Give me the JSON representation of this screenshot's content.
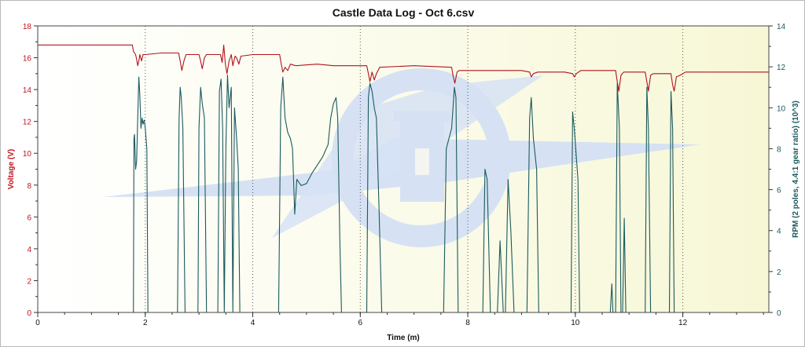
{
  "chart_data": {
    "type": "line",
    "title": "Castle Data Log - Oct 6.csv",
    "xlabel": "Time (m)",
    "ylabel_left": "Voltage (V)",
    "ylabel_right": "RPM (2 poles, 4.4:1 gear ratio) (10^3)",
    "xlim": [
      0,
      13.6
    ],
    "ylim_left": [
      0,
      18
    ],
    "ylim_right": [
      0,
      14
    ],
    "x_ticks": [
      0,
      2,
      4,
      6,
      8,
      10,
      12
    ],
    "y_left_ticks": [
      0,
      2,
      4,
      6,
      8,
      10,
      12,
      14,
      16,
      18
    ],
    "y_right_ticks": [
      0,
      2,
      4,
      6,
      8,
      10,
      12,
      14
    ],
    "grid": {
      "x": true,
      "y": false,
      "style": "dotted"
    },
    "colors": {
      "voltage": "#b0141e",
      "rpm": "#1a5a5e",
      "left_axis": "#c0141e",
      "right_axis": "#1a5a5e",
      "plot_bg_left": "#ffffff",
      "plot_bg_right": "#f7f7d6",
      "watermark": "#d6e2f4"
    },
    "series": [
      {
        "name": "Voltage",
        "axis": "left",
        "points": [
          [
            0,
            16.8
          ],
          [
            1.76,
            16.8
          ],
          [
            1.78,
            16.4
          ],
          [
            1.82,
            16.2
          ],
          [
            1.84,
            15.9
          ],
          [
            1.86,
            15.5
          ],
          [
            1.88,
            15.8
          ],
          [
            1.9,
            16.2
          ],
          [
            1.93,
            15.8
          ],
          [
            1.96,
            16.2
          ],
          [
            2.0,
            16.2
          ],
          [
            2.3,
            16.3
          ],
          [
            2.62,
            16.3
          ],
          [
            2.65,
            15.8
          ],
          [
            2.68,
            15.2
          ],
          [
            2.72,
            15.8
          ],
          [
            2.76,
            16.2
          ],
          [
            3.0,
            16.2
          ],
          [
            3.03,
            15.8
          ],
          [
            3.06,
            15.3
          ],
          [
            3.1,
            16.0
          ],
          [
            3.14,
            16.2
          ],
          [
            3.4,
            16.2
          ],
          [
            3.43,
            15.7
          ],
          [
            3.46,
            16.8
          ],
          [
            3.49,
            15.6
          ],
          [
            3.52,
            15.0
          ],
          [
            3.56,
            15.8
          ],
          [
            3.6,
            16.2
          ],
          [
            3.63,
            15.5
          ],
          [
            3.67,
            16.1
          ],
          [
            3.7,
            16.0
          ],
          [
            3.74,
            15.6
          ],
          [
            3.78,
            16.1
          ],
          [
            4.0,
            16.2
          ],
          [
            4.5,
            16.2
          ],
          [
            4.53,
            15.6
          ],
          [
            4.56,
            15.1
          ],
          [
            4.6,
            15.4
          ],
          [
            4.65,
            15.2
          ],
          [
            4.7,
            15.6
          ],
          [
            4.8,
            15.5
          ],
          [
            5.2,
            15.6
          ],
          [
            5.5,
            15.5
          ],
          [
            6.0,
            15.5
          ],
          [
            6.12,
            15.5
          ],
          [
            6.15,
            15.0
          ],
          [
            6.18,
            14.5
          ],
          [
            6.22,
            15.1
          ],
          [
            6.26,
            14.6
          ],
          [
            6.3,
            15.0
          ],
          [
            6.36,
            15.4
          ],
          [
            7.0,
            15.5
          ],
          [
            7.7,
            15.4
          ],
          [
            7.73,
            14.8
          ],
          [
            7.76,
            14.4
          ],
          [
            7.8,
            15.1
          ],
          [
            7.84,
            15.2
          ],
          [
            8.5,
            15.2
          ],
          [
            9.0,
            15.2
          ],
          [
            9.15,
            15.1
          ],
          [
            9.18,
            14.8
          ],
          [
            9.22,
            15.0
          ],
          [
            9.3,
            15.1
          ],
          [
            9.8,
            15.1
          ],
          [
            9.95,
            15.0
          ],
          [
            9.98,
            14.8
          ],
          [
            10.02,
            15.0
          ],
          [
            10.1,
            15.2
          ],
          [
            10.75,
            15.2
          ],
          [
            10.78,
            14.5
          ],
          [
            10.81,
            13.9
          ],
          [
            10.85,
            14.9
          ],
          [
            10.9,
            15.1
          ],
          [
            11.3,
            15.1
          ],
          [
            11.33,
            14.5
          ],
          [
            11.36,
            13.9
          ],
          [
            11.4,
            14.9
          ],
          [
            11.45,
            15.0
          ],
          [
            11.78,
            15.0
          ],
          [
            11.81,
            14.3
          ],
          [
            11.84,
            13.9
          ],
          [
            11.88,
            14.8
          ],
          [
            11.95,
            14.9
          ],
          [
            12.05,
            15.1
          ],
          [
            13.6,
            15.1
          ]
        ]
      },
      {
        "name": "RPM",
        "axis": "right",
        "points": [
          [
            0,
            0
          ],
          [
            1.78,
            0
          ],
          [
            1.79,
            8.5
          ],
          [
            1.8,
            8.7
          ],
          [
            1.82,
            7.0
          ],
          [
            1.84,
            7.4
          ],
          [
            1.86,
            9.5
          ],
          [
            1.88,
            11.5
          ],
          [
            1.9,
            10.6
          ],
          [
            1.92,
            9.0
          ],
          [
            1.94,
            9.5
          ],
          [
            1.96,
            9.2
          ],
          [
            1.98,
            9.4
          ],
          [
            2.0,
            9.0
          ],
          [
            2.03,
            8.0
          ],
          [
            2.05,
            0
          ],
          [
            2.6,
            0
          ],
          [
            2.63,
            9.5
          ],
          [
            2.65,
            11.0
          ],
          [
            2.67,
            10.5
          ],
          [
            2.7,
            9.0
          ],
          [
            2.74,
            0
          ],
          [
            2.98,
            0
          ],
          [
            3.0,
            9.0
          ],
          [
            3.03,
            11.0
          ],
          [
            3.06,
            10.2
          ],
          [
            3.1,
            9.5
          ],
          [
            3.14,
            0
          ],
          [
            3.35,
            0
          ],
          [
            3.38,
            10.8
          ],
          [
            3.41,
            11.4
          ],
          [
            3.44,
            9.0
          ],
          [
            3.47,
            0
          ],
          [
            3.5,
            8.0
          ],
          [
            3.53,
            11.6
          ],
          [
            3.56,
            10.0
          ],
          [
            3.6,
            11.0
          ],
          [
            3.63,
            0
          ],
          [
            3.66,
            10.0
          ],
          [
            3.7,
            8.5
          ],
          [
            3.73,
            7.0
          ],
          [
            3.76,
            0
          ],
          [
            4.48,
            0
          ],
          [
            4.52,
            10.0
          ],
          [
            4.56,
            11.5
          ],
          [
            4.6,
            9.5
          ],
          [
            4.65,
            8.8
          ],
          [
            4.7,
            8.5
          ],
          [
            4.74,
            8.0
          ],
          [
            4.78,
            4.8
          ],
          [
            4.82,
            6.5
          ],
          [
            4.9,
            6.2
          ],
          [
            5.0,
            6.3
          ],
          [
            5.1,
            6.8
          ],
          [
            5.2,
            7.2
          ],
          [
            5.3,
            7.6
          ],
          [
            5.4,
            8.2
          ],
          [
            5.45,
            9.5
          ],
          [
            5.5,
            10.2
          ],
          [
            5.55,
            10.5
          ],
          [
            5.58,
            9.5
          ],
          [
            5.62,
            3.5
          ],
          [
            5.65,
            0
          ],
          [
            6.12,
            0
          ],
          [
            6.15,
            10.5
          ],
          [
            6.18,
            11.2
          ],
          [
            6.22,
            10.8
          ],
          [
            6.26,
            10.0
          ],
          [
            6.3,
            9.5
          ],
          [
            6.35,
            5.0
          ],
          [
            6.4,
            0
          ],
          [
            7.55,
            0
          ],
          [
            7.6,
            8.0
          ],
          [
            7.65,
            8.5
          ],
          [
            7.7,
            9.0
          ],
          [
            7.75,
            11.0
          ],
          [
            7.78,
            10.5
          ],
          [
            7.82,
            0
          ],
          [
            8.28,
            0
          ],
          [
            8.32,
            7.0
          ],
          [
            8.36,
            6.5
          ],
          [
            8.42,
            0
          ],
          [
            8.55,
            0
          ],
          [
            8.6,
            3.5
          ],
          [
            8.66,
            0
          ],
          [
            8.7,
            0
          ],
          [
            8.75,
            6.5
          ],
          [
            8.8,
            4.0
          ],
          [
            8.86,
            0
          ],
          [
            9.1,
            0
          ],
          [
            9.15,
            9.5
          ],
          [
            9.18,
            10.5
          ],
          [
            9.22,
            8.5
          ],
          [
            9.28,
            7.0
          ],
          [
            9.32,
            0
          ],
          [
            9.92,
            0
          ],
          [
            9.95,
            9.8
          ],
          [
            9.98,
            9.0
          ],
          [
            10.05,
            6.5
          ],
          [
            10.08,
            0
          ],
          [
            10.65,
            0
          ],
          [
            10.68,
            1.4
          ],
          [
            10.7,
            0
          ],
          [
            10.75,
            0
          ],
          [
            10.78,
            11.2
          ],
          [
            10.82,
            9.0
          ],
          [
            10.85,
            0
          ],
          [
            10.88,
            0
          ],
          [
            10.91,
            4.6
          ],
          [
            10.94,
            0
          ],
          [
            11.3,
            0
          ],
          [
            11.33,
            11.0
          ],
          [
            11.36,
            9.0
          ],
          [
            11.4,
            0
          ],
          [
            11.75,
            0
          ],
          [
            11.78,
            10.8
          ],
          [
            11.81,
            9.0
          ],
          [
            11.84,
            0
          ],
          [
            13.6,
            0
          ]
        ]
      }
    ]
  }
}
